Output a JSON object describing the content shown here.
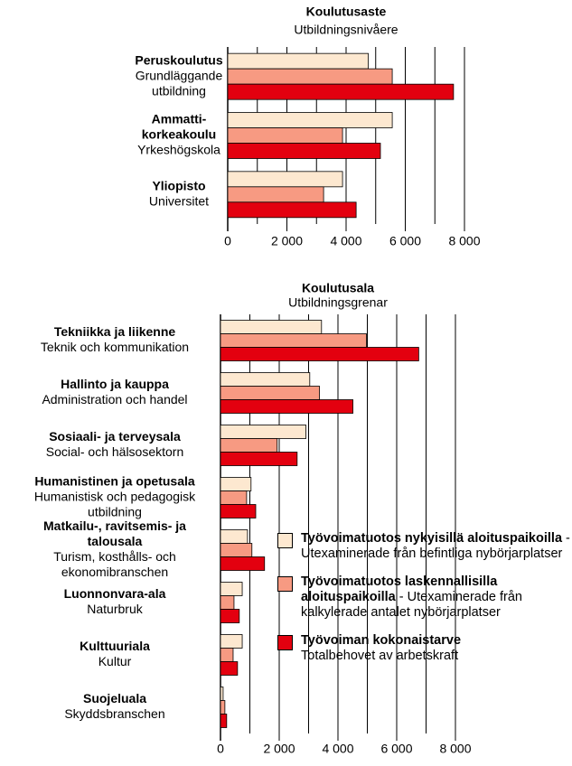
{
  "chart_data": [
    {
      "type": "bar",
      "orientation": "horizontal",
      "title": "Koulutusaste",
      "subtitle": "Utbildningsnivåere",
      "categories": [
        {
          "fi": [
            "Peruskoulutus"
          ],
          "sv": [
            "Grundläggande",
            "utbildning"
          ]
        },
        {
          "fi": [
            "Ammatti-",
            "korkeakoulu"
          ],
          "sv": [
            "Yrkeshögskola"
          ]
        },
        {
          "fi": [
            "Yliopisto"
          ],
          "sv": [
            "Universitet"
          ]
        }
      ],
      "series": [
        {
          "color": "#fde8d0",
          "values": [
            4750,
            5560,
            3880
          ]
        },
        {
          "color": "#f79a82",
          "values": [
            5560,
            3880,
            3240
          ]
        },
        {
          "color": "#e3000f",
          "values": [
            7630,
            5160,
            4340
          ]
        }
      ],
      "xlim": [
        0,
        8000
      ],
      "xticks": [
        0,
        {
          "value": 2000,
          "label": "2 000"
        },
        {
          "value": 4000,
          "label": "4 000"
        },
        {
          "value": 6000,
          "label": "6 000"
        },
        {
          "value": 8000,
          "label": "8 000"
        }
      ],
      "minor_xticks": [
        1000,
        3000,
        5000,
        7000
      ],
      "grid": true
    },
    {
      "type": "bar",
      "orientation": "horizontal",
      "title": "Koulutusala",
      "subtitle": "Utbildningsgrenar",
      "categories": [
        {
          "fi": [
            "Tekniikka ja liikenne"
          ],
          "sv": [
            "Teknik och kommunikation"
          ]
        },
        {
          "fi": [
            "Hallinto ja kauppa"
          ],
          "sv": [
            "Administration och  handel"
          ]
        },
        {
          "fi": [
            "Sosiaali- ja terveysala"
          ],
          "sv": [
            "Social- och hälsosektorn"
          ]
        },
        {
          "fi": [
            "Humanistinen ja opetusala"
          ],
          "sv": [
            "Humanistisk och pedagogisk",
            "utbildning"
          ]
        },
        {
          "fi": [
            "Matkailu-, ravitsemis- ja",
            "talousala"
          ],
          "sv": [
            "Turism, kosthålls- och",
            "ekonomibranschen"
          ]
        },
        {
          "fi": [
            "Luonnonvara-ala"
          ],
          "sv": [
            "Naturbruk"
          ]
        },
        {
          "fi": [
            "Kulttuuriala"
          ],
          "sv": [
            "Kultur"
          ]
        },
        {
          "fi": [
            "Suojeluala"
          ],
          "sv": [
            "Skyddsbranschen"
          ]
        }
      ],
      "series": [
        {
          "name": "Työvoimatuotos nykyisillä aloituspaikoilla",
          "note": "- Utexaminerade från befintliga nybörjarplatser",
          "color": "#fde8d0",
          "values": [
            3440,
            3040,
            2910,
            1040,
            920,
            740,
            740,
            90
          ]
        },
        {
          "name": "Työvoimatuotos laskennallisilla aloituspaikoilla",
          "note": "- Utexaminerade från kalkylerade antalet nybörjarplatser",
          "color": "#f79a82",
          "values": [
            4970,
            3370,
            1930,
            890,
            1070,
            460,
            430,
            150
          ]
        },
        {
          "name": "Työvoiman kokonaistarve",
          "note": "Totalbehovet av arbetskraft",
          "color": "#e3000f",
          "values": [
            6750,
            4510,
            2610,
            1200,
            1500,
            640,
            580,
            210
          ]
        }
      ],
      "xlim": [
        0,
        8000
      ],
      "xticks": [
        0,
        {
          "value": 2000,
          "label": "2 000"
        },
        {
          "value": 4000,
          "label": "4 000"
        },
        {
          "value": 6000,
          "label": "6 000"
        },
        {
          "value": 8000,
          "label": "8 000"
        }
      ],
      "minor_xticks": [
        1000,
        3000,
        5000,
        7000
      ],
      "grid": true,
      "legend": "lower right"
    }
  ]
}
